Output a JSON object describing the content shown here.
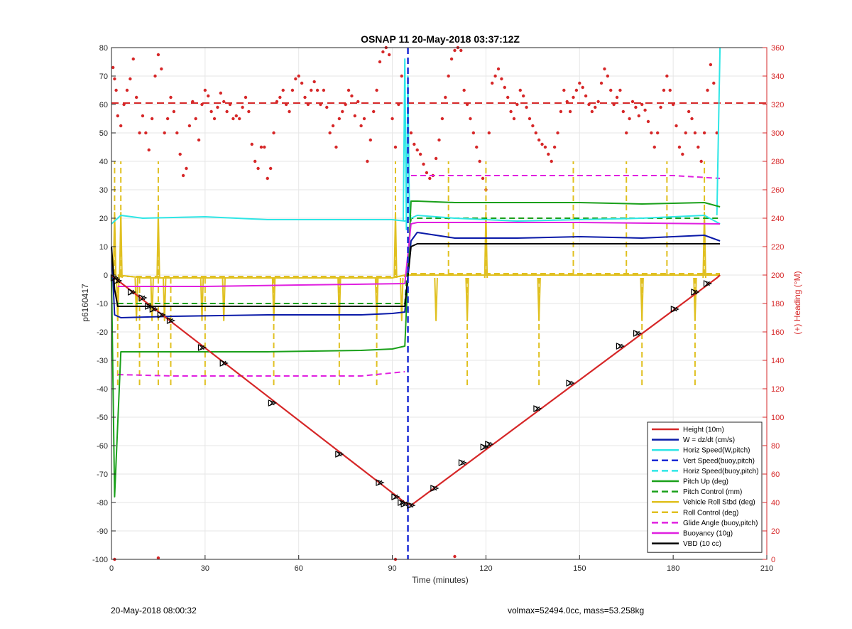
{
  "footer": {
    "left_text": "20-May-2018 08:00:32",
    "right_text": "volmax=52494.0cc, mass=53.258kg"
  },
  "colors": {
    "height": "#d62728",
    "w": "#0a1aa8",
    "horiz_speed": "#2ee6e6",
    "vert_speed_buoy": "#1a2ad6",
    "pitch": "#1aa01a",
    "roll": "#e0c020",
    "glide": "#e020e0",
    "buoyancy": "#e020e0",
    "vbd": "#000000",
    "heading": "#d62728",
    "axis_right": "#d62728",
    "grid": "#e6e6e6"
  },
  "chart_data": {
    "type": "line",
    "title": "OSNAP 11 20-May-2018 03:37:12Z",
    "xlabel": "Time (minutes)",
    "ylabel": "p6160417",
    "y2label": "(+) Heading (°M)",
    "xlim": [
      0,
      210
    ],
    "ylim": [
      -100,
      80
    ],
    "y2lim": [
      0,
      360
    ],
    "xticks": [
      0,
      30,
      60,
      90,
      120,
      150,
      180,
      210
    ],
    "yticks": [
      -100,
      -90,
      -80,
      -70,
      -60,
      -50,
      -40,
      -30,
      -20,
      -10,
      0,
      10,
      20,
      30,
      40,
      50,
      60,
      70,
      80
    ],
    "y2ticks": [
      0,
      20,
      40,
      60,
      80,
      100,
      120,
      140,
      160,
      180,
      200,
      220,
      240,
      260,
      280,
      300,
      320,
      340,
      360
    ],
    "grid": true,
    "legend_position": "bottom-right",
    "legend": [
      {
        "label": "Height (10m)",
        "style": "solid",
        "color_key": "height"
      },
      {
        "label": "W = dz/dt (cm/s)",
        "style": "solid",
        "color_key": "w"
      },
      {
        "label": "Horiz Speed(W,pitch)",
        "style": "solid",
        "color_key": "horiz_speed"
      },
      {
        "label": "Vert Speed(buoy,pitch)",
        "style": "dashed",
        "color_key": "vert_speed_buoy"
      },
      {
        "label": "Horiz Speed(buoy,pitch)",
        "style": "dashed",
        "color_key": "horiz_speed"
      },
      {
        "label": "Pitch Up (deg)",
        "style": "solid",
        "color_key": "pitch"
      },
      {
        "label": "Pitch Control (mm)",
        "style": "dashed",
        "color_key": "pitch"
      },
      {
        "label": "Vehicle Roll Stbd (deg)",
        "style": "solid",
        "color_key": "roll"
      },
      {
        "label": "Roll Control (deg)",
        "style": "dashed",
        "color_key": "roll"
      },
      {
        "label": "Glide Angle (buoy,pitch)",
        "style": "dashed",
        "color_key": "glide"
      },
      {
        "label": "Buoyancy (10g)",
        "style": "solid",
        "color_key": "buoyancy"
      },
      {
        "label": "VBD (10 cc)",
        "style": "solid",
        "color_key": "vbd"
      }
    ],
    "series": [
      {
        "key": "height",
        "x": [
          0,
          1,
          94,
          96,
          194,
          195
        ],
        "y": [
          0,
          -1,
          -80,
          -81,
          -1,
          0
        ]
      },
      {
        "key": "w",
        "x": [
          0,
          1,
          3,
          20,
          50,
          80,
          90,
          94,
          96,
          98,
          110,
          130,
          150,
          170,
          190,
          195
        ],
        "y": [
          10,
          -14,
          -15,
          -14.5,
          -14,
          -14,
          -13.5,
          -13,
          12,
          15,
          13,
          13,
          13.5,
          13,
          14,
          12
        ]
      },
      {
        "key": "horiz_speed",
        "x": [
          0,
          3,
          10,
          30,
          50,
          70,
          90,
          94,
          96,
          98,
          110,
          130,
          150,
          170,
          190,
          195
        ],
        "y": [
          18,
          21,
          20,
          20.5,
          19.5,
          19.5,
          19.5,
          19,
          20,
          21,
          20,
          19,
          19.5,
          20,
          21,
          18
        ]
      },
      {
        "key": "pitch",
        "x": [
          0,
          1,
          3,
          20,
          50,
          80,
          90,
          94,
          96,
          98,
          110,
          130,
          150,
          170,
          190,
          195
        ],
        "y": [
          0,
          -78,
          -27,
          -27,
          -27,
          -26.5,
          -26,
          -25,
          26,
          26,
          25.5,
          25.5,
          25.5,
          25,
          25.5,
          24
        ]
      },
      {
        "key": "pitch_control",
        "x": [
          2,
          94,
          96,
          195
        ],
        "y": [
          -10,
          -10,
          20,
          20
        ]
      },
      {
        "key": "glide",
        "x": [
          2,
          20,
          50,
          80,
          94,
          96,
          120,
          150,
          180,
          195
        ],
        "y": [
          -35,
          -35.5,
          -35.5,
          -35.5,
          -34,
          35,
          35,
          35,
          35,
          34
        ]
      },
      {
        "key": "buoyancy",
        "x": [
          2,
          30,
          60,
          94,
          96,
          98,
          150,
          195
        ],
        "y": [
          -4,
          -4,
          -3.5,
          -3,
          18,
          18.5,
          18.5,
          18
        ]
      },
      {
        "key": "vbd",
        "x": [
          0,
          1,
          2,
          94,
          96,
          98,
          195
        ],
        "y": [
          10,
          -5,
          -11,
          -11,
          10,
          11,
          11
        ]
      },
      {
        "key": "roll",
        "x": [
          2,
          10,
          30,
          50,
          70,
          90,
          94,
          96,
          100,
          130,
          160,
          195
        ],
        "y": [
          0,
          -1,
          -1,
          -1,
          -1,
          -1,
          0,
          0,
          0,
          0,
          0,
          0
        ]
      }
    ],
    "roll_spikes": {
      "vehicle_roll_down": [
        2,
        8,
        13,
        17,
        29,
        36,
        52,
        73,
        85,
        93,
        104,
        114,
        137,
        170,
        187
      ],
      "vehicle_roll_up": [
        1,
        3,
        15,
        91,
        120,
        190
      ],
      "roll_control_up": [
        1,
        3,
        15,
        91,
        108,
        120,
        148,
        165,
        178,
        190
      ],
      "roll_control_down": [
        2,
        9,
        15,
        19,
        30,
        52,
        73,
        85,
        114,
        137,
        170,
        187
      ]
    },
    "horiz_speed_spike": {
      "x": [
        93.5,
        94,
        94.5,
        95,
        95.5,
        96
      ],
      "y": [
        19,
        76,
        16,
        70,
        20,
        21
      ]
    },
    "end_spike": {
      "x": [
        194,
        195
      ],
      "y": [
        21,
        80
      ]
    },
    "vert_speed_line_x": 95,
    "heading_mean": 321,
    "heading_points": {
      "x": [
        0.5,
        1,
        1.5,
        2,
        3,
        4,
        5,
        6,
        7,
        8,
        9,
        10,
        11,
        12,
        13,
        14,
        15,
        16,
        17,
        18,
        19,
        20,
        21,
        22,
        23,
        24,
        25,
        26,
        27,
        28,
        29,
        30,
        31,
        32,
        33,
        34,
        35,
        36,
        37,
        38,
        39,
        40,
        41,
        42,
        43,
        44,
        45,
        46,
        47,
        48,
        49,
        50,
        51,
        52,
        53,
        54,
        55,
        56,
        57,
        58,
        59,
        60,
        61,
        62,
        63,
        64,
        65,
        66,
        67,
        68,
        69,
        70,
        71,
        72,
        73,
        74,
        75,
        76,
        77,
        78,
        79,
        80,
        81,
        82,
        83,
        84,
        85,
        86,
        87,
        88,
        89,
        90,
        91,
        92,
        93,
        96,
        97,
        98,
        99,
        100,
        101,
        102,
        103,
        104,
        105,
        106,
        107,
        108,
        109,
        110,
        111,
        112,
        113,
        114,
        115,
        116,
        117,
        118,
        119,
        120,
        121,
        122,
        123,
        124,
        125,
        126,
        127,
        128,
        129,
        130,
        131,
        132,
        133,
        134,
        135,
        136,
        137,
        138,
        139,
        140,
        141,
        142,
        143,
        144,
        145,
        146,
        147,
        148,
        149,
        150,
        151,
        152,
        153,
        154,
        155,
        156,
        157,
        158,
        159,
        160,
        161,
        162,
        163,
        164,
        165,
        166,
        167,
        168,
        169,
        170,
        171,
        172,
        173,
        174,
        175,
        176,
        177,
        178,
        179,
        180,
        181,
        182,
        183,
        184,
        185,
        186,
        187,
        188,
        189,
        190,
        191,
        192,
        193,
        194
      ],
      "y": [
        346,
        338,
        330,
        312,
        305,
        320,
        330,
        338,
        352,
        325,
        300,
        312,
        300,
        288,
        310,
        340,
        355,
        345,
        300,
        310,
        325,
        315,
        300,
        285,
        270,
        275,
        305,
        322,
        310,
        295,
        320,
        330,
        326,
        315,
        310,
        318,
        328,
        322,
        315,
        320,
        310,
        312,
        310,
        318,
        325,
        315,
        292,
        280,
        275,
        290,
        290,
        268,
        275,
        300,
        322,
        325,
        330,
        320,
        315,
        330,
        338,
        340,
        335,
        325,
        320,
        330,
        336,
        330,
        320,
        330,
        318,
        300,
        305,
        290,
        310,
        315,
        320,
        330,
        326,
        312,
        322,
        305,
        310,
        280,
        295,
        315,
        330,
        350,
        357,
        360,
        355,
        310,
        290,
        320,
        340,
        300,
        292,
        288,
        285,
        278,
        272,
        268,
        270,
        282,
        295,
        310,
        325,
        340,
        352,
        358,
        360,
        358,
        330,
        320,
        310,
        300,
        290,
        280,
        268,
        260,
        300,
        335,
        340,
        345,
        338,
        332,
        325,
        315,
        310,
        320,
        330,
        326,
        318,
        310,
        305,
        300,
        295,
        292,
        290,
        285,
        280,
        290,
        300,
        315,
        330,
        322,
        315,
        325,
        330,
        335,
        332,
        326,
        320,
        315,
        318,
        322,
        335,
        345,
        340,
        330,
        320,
        325,
        330,
        315,
        300,
        310,
        322,
        318,
        312,
        320,
        316,
        308,
        300,
        290,
        300,
        318,
        330,
        340,
        330,
        320,
        305,
        290,
        285,
        300,
        315,
        310,
        300,
        290,
        280,
        300,
        330,
        348,
        335,
        300
      ]
    },
    "heading_outliers": {
      "x": [
        1,
        15,
        91,
        110
      ],
      "y": [
        0,
        1,
        0,
        2
      ]
    },
    "markers": {
      "x": [
        1,
        2,
        6.5,
        10,
        12,
        13.5,
        16,
        19,
        29,
        36,
        51.5,
        73,
        86,
        91,
        93,
        94,
        96,
        103.5,
        112.5,
        119.5,
        121,
        136.5,
        147,
        163,
        168.5,
        180.5,
        187,
        191
      ],
      "y": [
        -1,
        -2,
        -6,
        -8,
        -11,
        -12,
        -14,
        -16,
        -25.5,
        -31,
        -45,
        -63,
        -73,
        -78,
        -80,
        -80.5,
        -81,
        -75,
        -66,
        -60.5,
        -59.5,
        -47,
        -38,
        -25,
        -20.5,
        -12,
        -6,
        -3
      ]
    }
  }
}
